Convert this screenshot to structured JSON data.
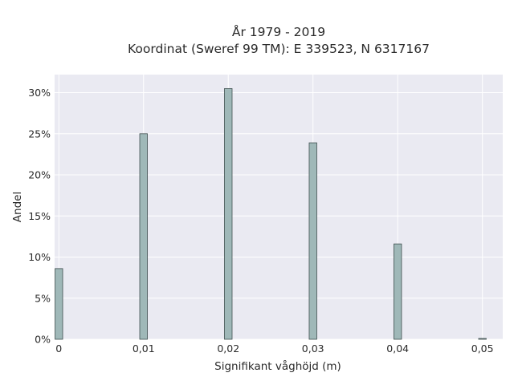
{
  "chart_data": {
    "type": "bar",
    "title_lines": [
      "År 1979 - 2019",
      "Koordinat (Sweref 99 TM): E 339523, N 6317167"
    ],
    "xlabel": "Signifikant våghöjd (m)",
    "ylabel": "Andel",
    "x": [
      0,
      0.01,
      0.02,
      0.03,
      0.04,
      0.05
    ],
    "values": [
      0.086,
      0.25,
      0.305,
      0.239,
      0.116,
      0.001
    ],
    "xlim": [
      -0.0005,
      0.0524
    ],
    "ylim": [
      0,
      0.322
    ],
    "xticks": [
      {
        "value": 0,
        "label": "0"
      },
      {
        "value": 0.01,
        "label": "0,01"
      },
      {
        "value": 0.02,
        "label": "0,02"
      },
      {
        "value": 0.03,
        "label": "0,03"
      },
      {
        "value": 0.04,
        "label": "0,04"
      },
      {
        "value": 0.05,
        "label": "0,05"
      }
    ],
    "yticks": [
      {
        "value": 0,
        "label": "0%"
      },
      {
        "value": 0.05,
        "label": "5%"
      },
      {
        "value": 0.1,
        "label": "10%"
      },
      {
        "value": 0.15,
        "label": "15%"
      },
      {
        "value": 0.2,
        "label": "20%"
      },
      {
        "value": 0.25,
        "label": "25%"
      },
      {
        "value": 0.3,
        "label": "30%"
      }
    ],
    "grid": true,
    "colors": {
      "background": "#eaeaf2",
      "grid": "#ffffff",
      "bar_fill": "#9fb8b8",
      "bar_edge": "#3f4f4f"
    }
  }
}
